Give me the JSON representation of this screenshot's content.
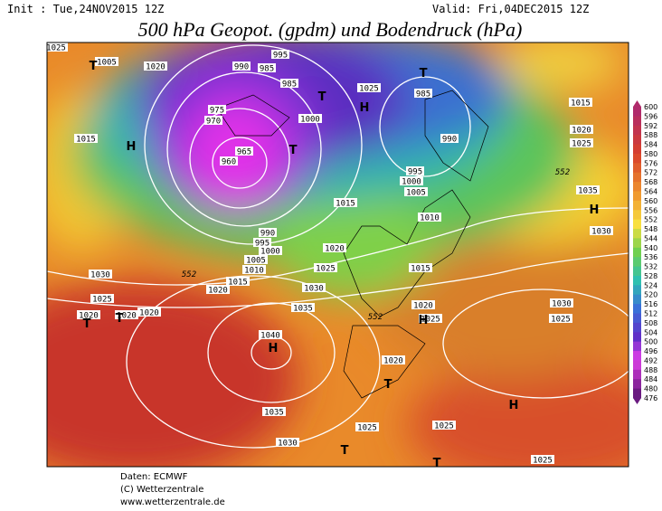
{
  "header": {
    "init": "Init : Tue,24NOV2015 12Z",
    "valid": "Valid: Fri,04DEC2015 12Z",
    "title": "500 hPa Geopot. (gpdm) und Bodendruck (hPa)"
  },
  "colorbar": {
    "ticks": [
      600,
      596,
      592,
      588,
      584,
      580,
      576,
      572,
      568,
      564,
      560,
      556,
      552,
      548,
      544,
      540,
      536,
      532,
      528,
      524,
      520,
      516,
      512,
      508,
      504,
      500,
      496,
      492,
      488,
      484,
      480,
      476
    ]
  },
  "map": {
    "isobar_labels": [
      "1025",
      "1005",
      "1020",
      "995",
      "990",
      "985",
      "985",
      "975",
      "970",
      "1000",
      "965",
      "960",
      "1025",
      "985",
      "1015",
      "990",
      "1015",
      "1020",
      "1025",
      "1035",
      "1030",
      "995",
      "1000",
      "1005",
      "1015",
      "1010",
      "990",
      "995",
      "1000",
      "1005",
      "1010",
      "1015",
      "1020",
      "1020",
      "1025",
      "1015",
      "1030",
      "1025",
      "1020",
      "1020",
      "1020",
      "1035",
      "1030",
      "1020",
      "1025",
      "1030",
      "1025",
      "1040",
      "1020",
      "1035",
      "1030",
      "1025",
      "1025",
      "1025"
    ],
    "geopotential_labels": [
      "552",
      "552",
      "552"
    ],
    "pressure_centers": [
      "H",
      "T",
      "H",
      "T",
      "T",
      "H",
      "H",
      "T",
      "H",
      "T",
      "T",
      "H",
      "T",
      "T",
      "T"
    ]
  },
  "footer": {
    "lines": [
      "Daten: ECMWF",
      "(C) Wetterzentrale",
      "www.wetterzentrale.de"
    ]
  }
}
